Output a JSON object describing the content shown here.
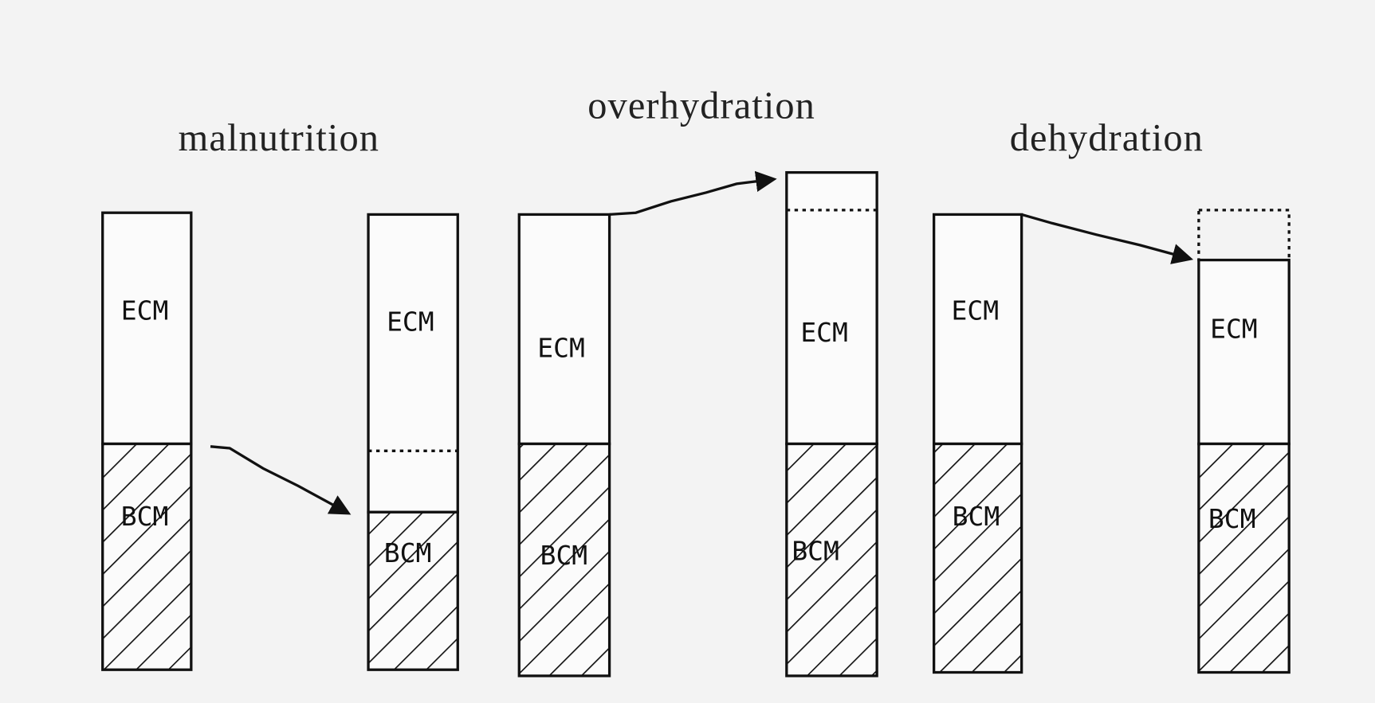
{
  "panels": [
    {
      "title": "malnutrition",
      "left": {
        "ecm": "ECM",
        "bcm": "BCM"
      },
      "right": {
        "ecm": "ECM",
        "bcm": "BCM"
      }
    },
    {
      "title": "overhydration",
      "left": {
        "ecm": "ECM",
        "bcm": "BCM"
      },
      "right": {
        "ecm": "ECM",
        "bcm": "BCM"
      }
    },
    {
      "title": "dehydration",
      "left": {
        "ecm": "ECM",
        "bcm": "BCM"
      },
      "right": {
        "ecm": "ECM",
        "bcm": "BCM"
      }
    }
  ]
}
